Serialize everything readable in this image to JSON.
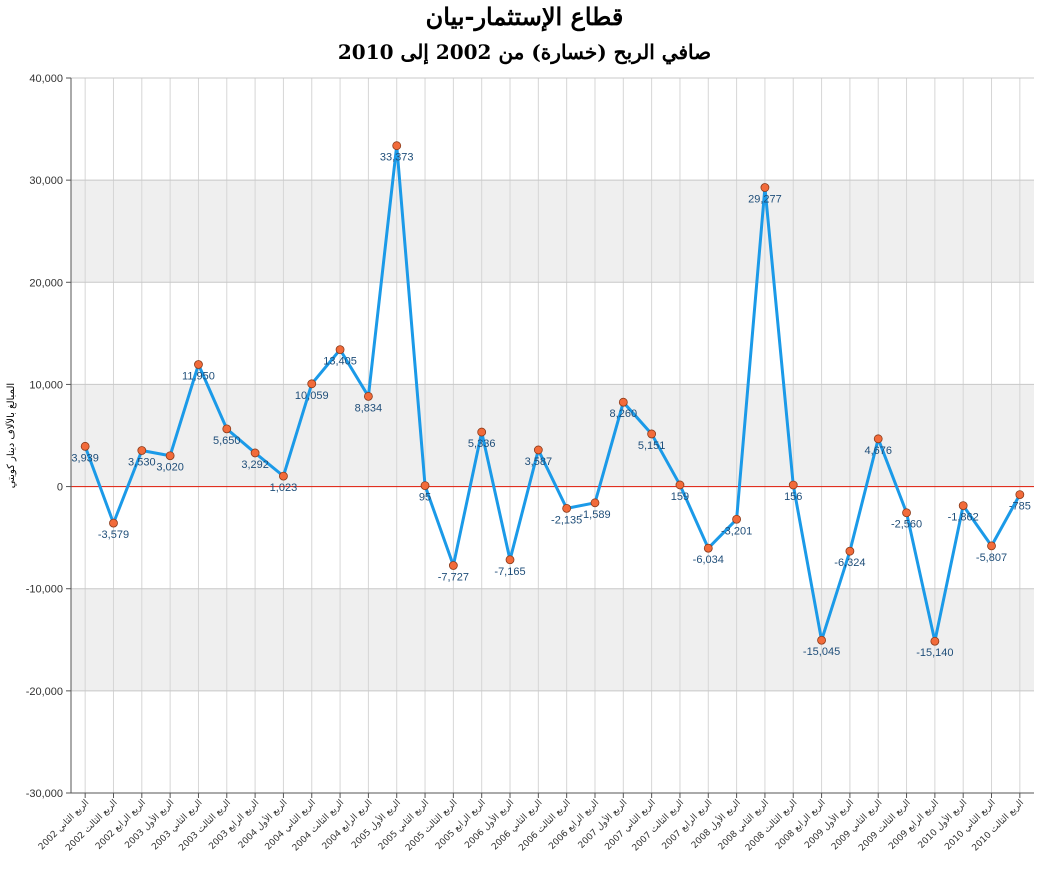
{
  "title": "قطاع الإستثمار-بيان",
  "subtitle": "صافي الربح (خسارة) من 2002 إلى 2010",
  "chart_data": {
    "type": "line",
    "title": "قطاع الإستثمار-بيان",
    "subtitle": "صافي الربح (خسارة) من 2002 إلى 2010",
    "ylabel": "المبالغ بالآلاف دينار كويتي",
    "xlabel": "",
    "ylim": [
      -30000,
      40000
    ],
    "yticks": [
      -30000,
      -20000,
      -10000,
      0,
      10000,
      20000,
      30000,
      40000
    ],
    "ytick_labels": [
      "-30,000",
      "-20,000",
      "-10,000",
      "0",
      "10,000",
      "20,000",
      "30,000",
      "40,000"
    ],
    "grid": true,
    "legend": "none",
    "line_color": "#1b9ae8",
    "marker_color": "#f26b3a",
    "zero_line_color": "#e03020",
    "categories": [
      "الربع الثاني 2002",
      "الربع الثالث 2002",
      "الربع الرابع 2002",
      "الربع الأول 2003",
      "الربع الثاني 2003",
      "الربع الثالث 2003",
      "الربع الرابع 2003",
      "الربع الأول 2004",
      "الربع الثاني 2004",
      "الربع الثالث 2004",
      "الربع الرابع 2004",
      "الربع الأول 2005",
      "الربع الثاني 2005",
      "الربع الثالث 2005",
      "الربع الرابع 2005",
      "الربع الأول 2006",
      "الربع الثاني 2006",
      "الربع الثالث 2006",
      "الربع الرابع 2006",
      "الربع الأول 2007",
      "الربع الثاني 2007",
      "الربع الثالث 2007",
      "الربع الرابع 2007",
      "الربع الأول 2008",
      "الربع الثاني 2008",
      "الربع الثالث 2008",
      "الربع الرابع 2008",
      "الربع الأول 2009",
      "الربع الثاني 2009",
      "الربع الثالث 2009",
      "الربع الرابع 2009",
      "الربع الأول 2010",
      "الربع الثاني 2010",
      "الربع الثالث 2010"
    ],
    "values": [
      3939,
      -3579,
      3530,
      3020,
      11950,
      5650,
      3292,
      1023,
      10059,
      13405,
      8834,
      33373,
      95,
      -7727,
      5336,
      -7165,
      3587,
      -2135,
      -1589,
      8260,
      5151,
      159,
      -6034,
      -3201,
      29277,
      156,
      -15045,
      -6324,
      4676,
      -2560,
      -15140,
      -1862,
      -5807,
      -785
    ],
    "value_labels": [
      "3,939",
      "-3,579",
      "3,530",
      "3,020",
      "11,950",
      "5,650",
      "3,292",
      "1,023",
      "10,059",
      "13,405",
      "8,834",
      "33,373",
      "95",
      "-7,727",
      "5,336",
      "-7,165",
      "3,587",
      "-2,135",
      "-1,589",
      "8,260",
      "5,151",
      "159",
      "-6,034",
      "-3,201",
      "29,277",
      "156",
      "-15,045",
      "-6,324",
      "4,676",
      "-2,560",
      "-15,140",
      "-1,862",
      "-5,807",
      "-785"
    ]
  }
}
